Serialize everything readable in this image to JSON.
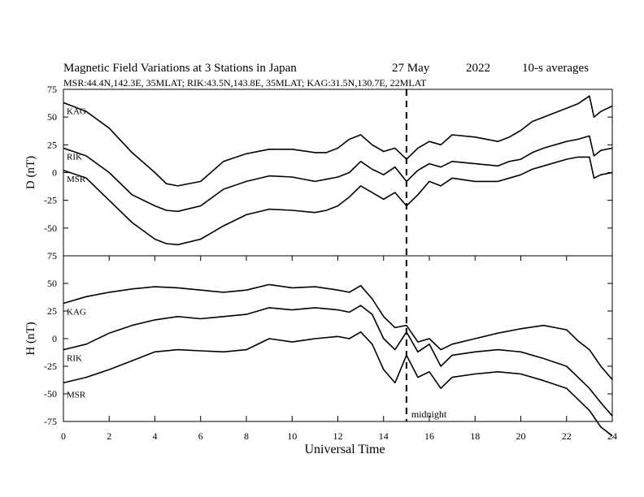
{
  "header": {
    "title": "Magnetic Field Variations at 3 Stations in Japan",
    "date": "27 May",
    "year": "2022",
    "averaging": "10-s averages",
    "stations_info": "MSR:44.4N,142.3E, 35MLAT;  RIK:43.5N,143.8E, 35MLAT;  KAG:31.5N,130.7E, 22MLAT"
  },
  "chart_data": [
    {
      "type": "line",
      "panel": "top",
      "ylabel": "D (nT)",
      "ylim": [
        -75,
        75
      ],
      "yticks": [
        75,
        50,
        25,
        0,
        -25,
        -50,
        -75
      ],
      "series": [
        {
          "name": "KAG",
          "x": [
            0,
            1,
            2,
            3,
            4,
            4.5,
            5,
            6,
            7,
            8,
            9,
            10,
            11,
            11.5,
            12,
            12.5,
            13,
            13.5,
            14,
            14.5,
            15,
            15.5,
            16,
            16.5,
            17,
            18,
            19,
            19.5,
            20,
            20.5,
            21,
            22,
            22.5,
            23,
            23.2,
            23.5,
            24
          ],
          "y": [
            63,
            55,
            40,
            18,
            0,
            -10,
            -12,
            -8,
            10,
            17,
            21,
            21,
            18,
            18,
            22,
            30,
            34,
            25,
            19,
            22,
            12,
            22,
            28,
            25,
            34,
            32,
            28,
            32,
            38,
            46,
            50,
            58,
            62,
            69,
            50,
            55,
            60
          ]
        },
        {
          "name": "RIK",
          "x": [
            0,
            1,
            2,
            3,
            4,
            4.5,
            5,
            6,
            7,
            8,
            9,
            10,
            11,
            11.5,
            12,
            12.5,
            13,
            13.5,
            14,
            14.5,
            15,
            15.5,
            16,
            16.5,
            17,
            18,
            19,
            19.5,
            20,
            20.5,
            21,
            22,
            22.5,
            23,
            23.2,
            23.5,
            24
          ],
          "y": [
            22,
            15,
            0,
            -20,
            -30,
            -34,
            -35,
            -30,
            -15,
            -8,
            -3,
            -4,
            -8,
            -6,
            -4,
            0,
            10,
            3,
            -2,
            5,
            -8,
            2,
            8,
            5,
            10,
            8,
            6,
            10,
            12,
            18,
            22,
            28,
            30,
            33,
            15,
            20,
            22
          ]
        },
        {
          "name": "MSR",
          "x": [
            0,
            1,
            2,
            3,
            4,
            4.5,
            5,
            6,
            7,
            8,
            9,
            10,
            11,
            11.5,
            12,
            12.5,
            13,
            13.5,
            14,
            14.5,
            15,
            15.5,
            16,
            16.5,
            17,
            18,
            19,
            19.5,
            20,
            20.5,
            21,
            22,
            22.5,
            23,
            23.2,
            23.5,
            24
          ],
          "y": [
            2,
            -5,
            -25,
            -45,
            -60,
            -64,
            -65,
            -60,
            -48,
            -38,
            -33,
            -34,
            -36,
            -34,
            -30,
            -22,
            -12,
            -18,
            -24,
            -18,
            -30,
            -20,
            -8,
            -12,
            -5,
            -8,
            -8,
            -5,
            -2,
            3,
            6,
            12,
            14,
            14,
            -5,
            -2,
            0
          ]
        }
      ]
    },
    {
      "type": "line",
      "panel": "bottom",
      "ylabel": "H (nT)",
      "ylim": [
        -75,
        75
      ],
      "yticks": [
        75,
        50,
        25,
        0,
        -25,
        -50,
        -75
      ],
      "xlabel": "Universal Time",
      "xlim": [
        0,
        24
      ],
      "xticks": [
        0,
        2,
        4,
        6,
        8,
        10,
        12,
        14,
        16,
        18,
        20,
        22,
        24
      ],
      "annotation": "midnight",
      "annotation_x": 15,
      "series": [
        {
          "name": "KAG",
          "x": [
            0,
            1,
            2,
            3,
            4,
            5,
            6,
            7,
            8,
            9,
            10,
            11,
            12,
            12.5,
            13,
            13.5,
            14,
            14.5,
            15,
            15.5,
            16,
            16.5,
            17,
            18,
            19,
            20,
            21,
            22,
            22.5,
            23,
            23.5,
            24
          ],
          "y": [
            32,
            38,
            42,
            45,
            47,
            46,
            44,
            42,
            44,
            49,
            46,
            47,
            44,
            42,
            48,
            36,
            20,
            10,
            12,
            -3,
            0,
            -10,
            -5,
            0,
            5,
            9,
            12,
            8,
            -2,
            -10,
            -25,
            -37
          ]
        },
        {
          "name": "RIK",
          "x": [
            0,
            1,
            2,
            3,
            4,
            5,
            6,
            7,
            8,
            9,
            10,
            11,
            12,
            12.5,
            13,
            13.5,
            14,
            14.5,
            15,
            15.5,
            16,
            16.5,
            17,
            18,
            19,
            20,
            21,
            22,
            22.5,
            23,
            23.5,
            24
          ],
          "y": [
            -10,
            -5,
            5,
            12,
            17,
            20,
            18,
            20,
            22,
            28,
            26,
            28,
            26,
            24,
            30,
            22,
            0,
            -10,
            6,
            -12,
            -5,
            -25,
            -15,
            -12,
            -10,
            -12,
            -18,
            -25,
            -35,
            -45,
            -58,
            -70
          ]
        },
        {
          "name": "MSR",
          "x": [
            0,
            1,
            2,
            3,
            4,
            5,
            6,
            7,
            8,
            9,
            10,
            11,
            12,
            12.5,
            13,
            13.5,
            14,
            14.5,
            15,
            15.5,
            16,
            16.5,
            17,
            18,
            19,
            20,
            21,
            22,
            22.5,
            23,
            23.5,
            24
          ],
          "y": [
            -40,
            -35,
            -28,
            -20,
            -12,
            -10,
            -11,
            -12,
            -10,
            0,
            -3,
            0,
            2,
            0,
            6,
            -5,
            -28,
            -40,
            -15,
            -35,
            -30,
            -45,
            -35,
            -32,
            -30,
            -32,
            -38,
            -45,
            -55,
            -65,
            -80,
            -88
          ]
        }
      ]
    }
  ]
}
